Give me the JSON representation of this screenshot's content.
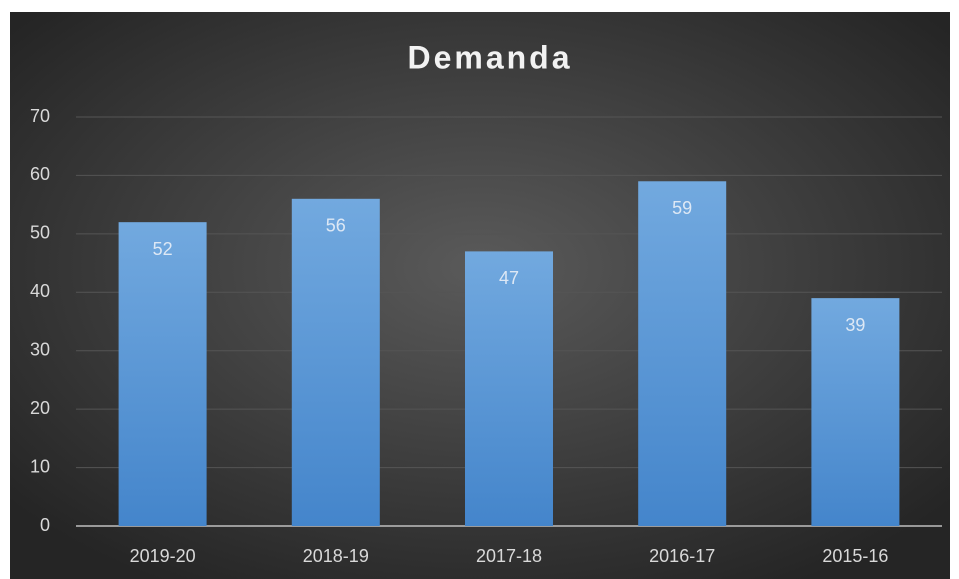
{
  "chart_data": {
    "type": "bar",
    "title": "Demanda",
    "categories": [
      "2019-20",
      "2018-19",
      "2017-18",
      "2016-17",
      "2015-16"
    ],
    "values": [
      52,
      56,
      47,
      59,
      39
    ],
    "color": "#5b9bd5",
    "ylim": [
      0,
      70
    ],
    "yticks": [
      0,
      10,
      20,
      30,
      40,
      50,
      60,
      70
    ],
    "grid": true
  }
}
